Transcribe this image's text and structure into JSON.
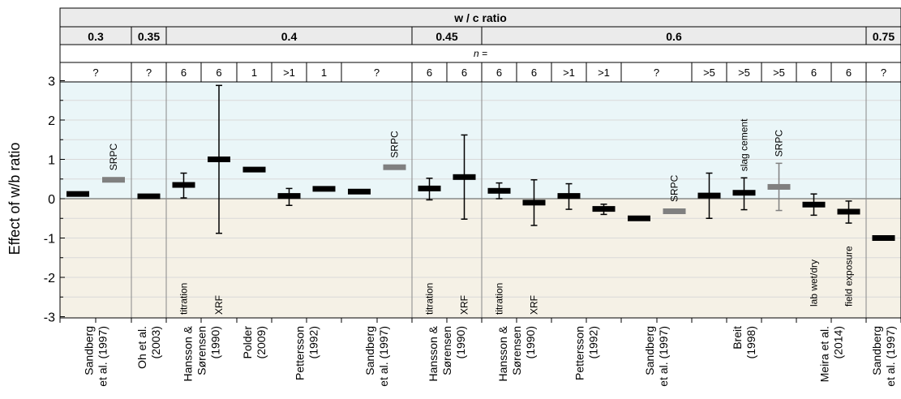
{
  "chart_data": {
    "type": "error_bar",
    "header_title": "w / c ratio",
    "n_label": "n =",
    "ylabel": "Effect of w/b ratio",
    "ylim": [
      -3,
      3
    ],
    "yticks": [
      "3",
      "2",
      "1",
      "0",
      "-1",
      "-2",
      "-3"
    ],
    "wc_groups": [
      {
        "label": "0.3",
        "span": [
          0,
          2
        ]
      },
      {
        "label": "0.35",
        "span": [
          2,
          3
        ]
      },
      {
        "label": "0.4",
        "span": [
          3,
          10
        ]
      },
      {
        "label": "0.45",
        "span": [
          10,
          12
        ]
      },
      {
        "label": "0.6",
        "span": [
          12,
          23
        ]
      },
      {
        "label": "0.75",
        "span": [
          23,
          24
        ]
      }
    ],
    "n_cells": [
      {
        "label": "?",
        "span": [
          0,
          2
        ]
      },
      {
        "label": "?",
        "span": [
          2,
          3
        ]
      },
      {
        "label": "6",
        "span": [
          3,
          4
        ]
      },
      {
        "label": "6",
        "span": [
          4,
          5
        ]
      },
      {
        "label": "1",
        "span": [
          5,
          6
        ]
      },
      {
        "label": ">1",
        "span": [
          6,
          7
        ]
      },
      {
        "label": "1",
        "span": [
          7,
          8
        ]
      },
      {
        "label": "?",
        "span": [
          8,
          10
        ]
      },
      {
        "label": "6",
        "span": [
          10,
          11
        ]
      },
      {
        "label": "6",
        "span": [
          11,
          12
        ]
      },
      {
        "label": "6",
        "span": [
          12,
          13
        ]
      },
      {
        "label": "6",
        "span": [
          13,
          14
        ]
      },
      {
        "label": ">1",
        "span": [
          14,
          15
        ]
      },
      {
        "label": ">1",
        "span": [
          15,
          16
        ]
      },
      {
        "label": "?",
        "span": [
          16,
          18
        ]
      },
      {
        "label": ">5",
        "span": [
          18,
          19
        ]
      },
      {
        "label": ">5",
        "span": [
          19,
          20
        ]
      },
      {
        "label": ">5",
        "span": [
          20,
          21
        ]
      },
      {
        "label": "6",
        "span": [
          21,
          22
        ]
      },
      {
        "label": "6",
        "span": [
          22,
          23
        ]
      },
      {
        "label": "?",
        "span": [
          23,
          24
        ]
      }
    ],
    "points": [
      {
        "slot": 0,
        "value": 0.12,
        "color": "#000000"
      },
      {
        "slot": 1,
        "value": 0.48,
        "color": "#808080",
        "annotation": "SRPC"
      },
      {
        "slot": 2,
        "value": 0.06,
        "color": "#000000"
      },
      {
        "slot": 3,
        "value": 0.35,
        "low": 0.02,
        "high": 0.65,
        "color": "#000000",
        "annotation": "titration"
      },
      {
        "slot": 4,
        "value": 1.0,
        "low": -0.88,
        "high": 2.88,
        "color": "#000000",
        "annotation": "XRF"
      },
      {
        "slot": 5,
        "value": 0.74,
        "color": "#000000"
      },
      {
        "slot": 6,
        "value": 0.07,
        "low": -0.17,
        "high": 0.26,
        "color": "#000000"
      },
      {
        "slot": 7,
        "value": 0.25,
        "color": "#000000"
      },
      {
        "slot": 8,
        "value": 0.18,
        "color": "#000000"
      },
      {
        "slot": 9,
        "value": 0.8,
        "color": "#808080",
        "annotation": "SRPC"
      },
      {
        "slot": 10,
        "value": 0.26,
        "low": -0.03,
        "high": 0.52,
        "color": "#000000",
        "annotation": "titration"
      },
      {
        "slot": 11,
        "value": 0.55,
        "low": -0.52,
        "high": 1.62,
        "color": "#000000",
        "annotation": "XRF"
      },
      {
        "slot": 12,
        "value": 0.2,
        "low": 0.0,
        "high": 0.4,
        "color": "#000000",
        "annotation": "titration"
      },
      {
        "slot": 13,
        "value": -0.1,
        "low": -0.68,
        "high": 0.48,
        "color": "#000000",
        "annotation": "XRF"
      },
      {
        "slot": 14,
        "value": 0.07,
        "low": -0.27,
        "high": 0.38,
        "color": "#000000"
      },
      {
        "slot": 15,
        "value": -0.26,
        "low": -0.4,
        "high": -0.14,
        "color": "#000000"
      },
      {
        "slot": 16,
        "value": -0.5,
        "color": "#000000"
      },
      {
        "slot": 17,
        "value": -0.32,
        "color": "#808080",
        "annotation": "SRPC"
      },
      {
        "slot": 18,
        "value": 0.08,
        "low": -0.5,
        "high": 0.65,
        "color": "#000000"
      },
      {
        "slot": 19,
        "value": 0.15,
        "low": -0.28,
        "high": 0.53,
        "color": "#000000",
        "annotation": "slag cement"
      },
      {
        "slot": 20,
        "value": 0.3,
        "low": -0.3,
        "high": 0.9,
        "color": "#808080",
        "annotation": "SRPC"
      },
      {
        "slot": 21,
        "value": -0.15,
        "low": -0.42,
        "high": 0.12,
        "color": "#000000",
        "annotation": "lab wet/dry"
      },
      {
        "slot": 22,
        "value": -0.33,
        "low": -0.62,
        "high": -0.06,
        "color": "#000000",
        "annotation": "field exposure"
      },
      {
        "slot": 23,
        "value": -1.0,
        "color": "#000000"
      }
    ],
    "references": [
      {
        "lines": [
          "Sandberg",
          "et al. (1997)"
        ],
        "span": [
          0,
          2
        ]
      },
      {
        "lines": [
          "Oh et al.",
          "(2003)"
        ],
        "span": [
          2,
          3
        ]
      },
      {
        "lines": [
          "Hansson &",
          "Sørensen",
          "(1990)"
        ],
        "span": [
          3,
          5
        ]
      },
      {
        "lines": [
          "Polder",
          "(2009)"
        ],
        "span": [
          5,
          6
        ]
      },
      {
        "lines": [
          "Pettersson",
          "(1992)"
        ],
        "span": [
          6,
          8
        ]
      },
      {
        "lines": [
          "Sandberg",
          "et al. (1997)"
        ],
        "span": [
          8,
          10
        ]
      },
      {
        "lines": [
          "Hansson &",
          "Sørensen",
          "(1990)"
        ],
        "span": [
          10,
          12
        ]
      },
      {
        "lines": [
          "Hansson &",
          "Sørensen",
          "(1990)"
        ],
        "span": [
          12,
          14
        ]
      },
      {
        "lines": [
          "Pettersson",
          "(1992)"
        ],
        "span": [
          14,
          16
        ]
      },
      {
        "lines": [
          "Sandberg",
          "et al. (1997)"
        ],
        "span": [
          16,
          18
        ]
      },
      {
        "lines": [
          "Breit",
          "(1998)"
        ],
        "span": [
          18,
          21
        ]
      },
      {
        "lines": [
          "Meira et al.",
          "(2014)"
        ],
        "span": [
          21,
          23
        ]
      },
      {
        "lines": [
          "Sandberg",
          "et al. (1997)"
        ],
        "span": [
          23,
          24
        ]
      }
    ],
    "colors": {
      "positive_band": "#eaf6f8",
      "negative_band": "#f5f1e6",
      "header": "#ebebeb",
      "srpc": "#808080",
      "main": "#000000"
    }
  }
}
